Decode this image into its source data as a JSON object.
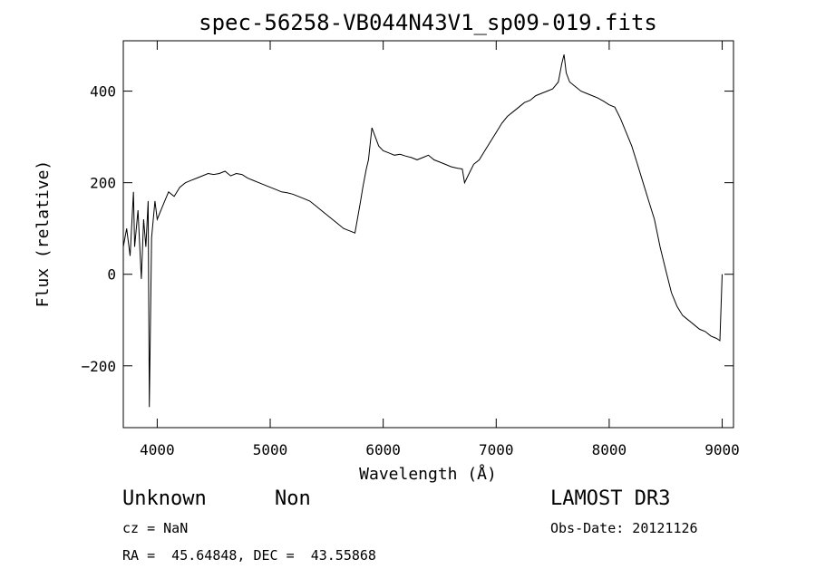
{
  "chart_data": {
    "type": "line",
    "title": "spec-56258-VB044N43V1_sp09-019.fits",
    "xlabel": "Wavelength (Å)",
    "ylabel": "Flux (relative)",
    "xlim": [
      3700,
      9100
    ],
    "ylim": [
      -335,
      510
    ],
    "x_ticks": [
      4000,
      5000,
      6000,
      7000,
      8000,
      9000
    ],
    "y_ticks": [
      -200,
      0,
      200,
      400
    ],
    "line_color": "#000000",
    "series": [
      {
        "x": [
          3700,
          3730,
          3760,
          3790,
          3800,
          3830,
          3860,
          3880,
          3900,
          3920,
          3930,
          3950,
          3980,
          4000,
          4050,
          4100,
          4150,
          4200,
          4250,
          4300,
          4350,
          4400,
          4450,
          4500,
          4550,
          4600,
          4650,
          4700,
          4750,
          4800,
          4850,
          4900,
          4950,
          5000,
          5050,
          5100,
          5150,
          5200,
          5250,
          5300,
          5350,
          5400,
          5450,
          5500,
          5550,
          5600,
          5650,
          5700,
          5750,
          5800,
          5820,
          5850,
          5870,
          5900,
          5930,
          5960,
          6000,
          6050,
          6100,
          6150,
          6200,
          6250,
          6300,
          6350,
          6400,
          6450,
          6500,
          6550,
          6600,
          6650,
          6700,
          6720,
          6750,
          6800,
          6850,
          6900,
          6950,
          7000,
          7050,
          7100,
          7150,
          7200,
          7250,
          7300,
          7350,
          7400,
          7450,
          7500,
          7550,
          7580,
          7600,
          7620,
          7650,
          7700,
          7750,
          7800,
          7850,
          7900,
          7950,
          8000,
          8050,
          8100,
          8150,
          8200,
          8250,
          8300,
          8350,
          8400,
          8450,
          8500,
          8550,
          8600,
          8650,
          8700,
          8750,
          8800,
          8850,
          8900,
          8950,
          8980,
          9000
        ],
        "y": [
          60,
          100,
          40,
          180,
          60,
          140,
          -10,
          120,
          60,
          160,
          -290,
          80,
          160,
          120,
          150,
          180,
          170,
          190,
          200,
          205,
          210,
          215,
          220,
          218,
          220,
          225,
          215,
          220,
          218,
          210,
          205,
          200,
          195,
          190,
          185,
          180,
          178,
          175,
          170,
          165,
          160,
          150,
          140,
          130,
          120,
          110,
          100,
          95,
          90,
          160,
          190,
          230,
          250,
          320,
          300,
          280,
          270,
          265,
          260,
          262,
          258,
          255,
          250,
          255,
          260,
          250,
          245,
          240,
          235,
          232,
          230,
          200,
          215,
          240,
          250,
          270,
          290,
          310,
          330,
          345,
          355,
          365,
          375,
          380,
          390,
          395,
          400,
          405,
          420,
          460,
          480,
          440,
          420,
          410,
          400,
          395,
          390,
          385,
          378,
          370,
          365,
          340,
          310,
          280,
          240,
          200,
          160,
          120,
          60,
          10,
          -40,
          -70,
          -90,
          -100,
          -110,
          -120,
          -125,
          -135,
          -140,
          -145,
          0
        ]
      }
    ]
  },
  "footer": {
    "object_class": "Unknown",
    "subclass": "Non",
    "survey": "LAMOST DR3",
    "redshift": "cz = NaN",
    "obs_date": "Obs-Date: 20121126",
    "coords": "RA =  45.64848, DEC =  43.55868"
  }
}
